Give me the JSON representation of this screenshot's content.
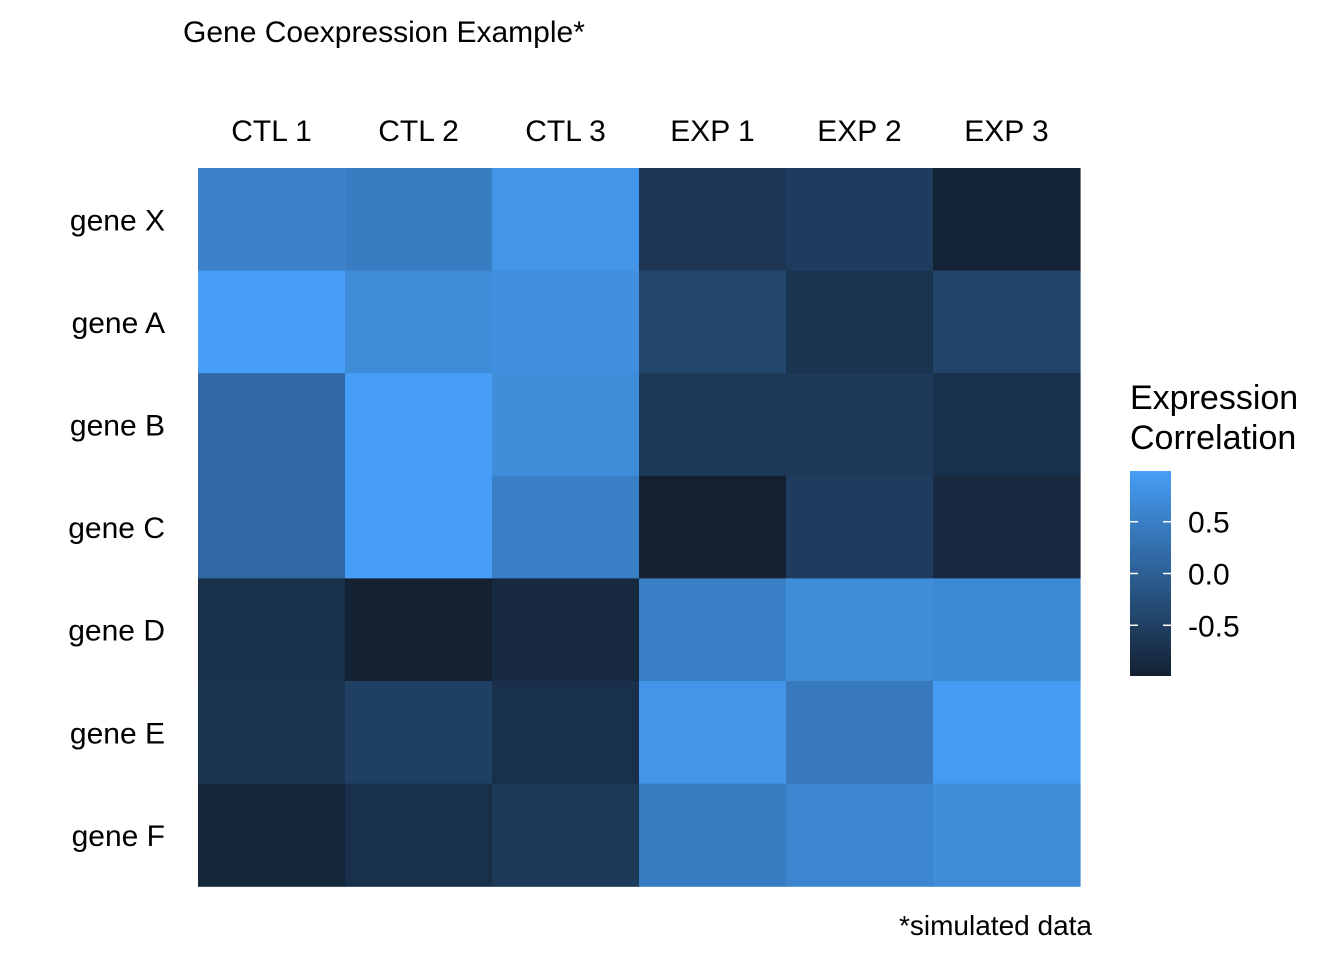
{
  "chart_data": {
    "type": "heatmap",
    "title": "Gene Coexpression Example*",
    "caption": "*simulated data",
    "columns": [
      "CTL 1",
      "CTL 2",
      "CTL 3",
      "EXP 1",
      "EXP 2",
      "EXP 3"
    ],
    "rows": [
      "gene X",
      "gene A",
      "gene B",
      "gene C",
      "gene D",
      "gene E",
      "gene F"
    ],
    "values": [
      [
        0.55,
        0.45,
        0.85,
        -0.65,
        -0.55,
        -0.95
      ],
      [
        0.99,
        0.7,
        0.75,
        -0.4,
        -0.7,
        -0.45
      ],
      [
        0.15,
        0.99,
        0.7,
        -0.6,
        -0.6,
        -0.75
      ],
      [
        0.15,
        0.99,
        0.5,
        -0.99,
        -0.55,
        -0.85
      ],
      [
        -0.75,
        -0.99,
        -0.85,
        0.5,
        0.7,
        0.65
      ],
      [
        -0.7,
        -0.5,
        -0.75,
        0.85,
        0.4,
        0.95
      ],
      [
        -0.9,
        -0.75,
        -0.6,
        0.45,
        0.6,
        0.7
      ]
    ],
    "value_range": [
      -0.99,
      0.99
    ],
    "color_low": "#132132",
    "color_high": "#469ef6",
    "legend": {
      "title_lines": [
        "Expression",
        "Correlation"
      ],
      "ticks": [
        0.5,
        0.0,
        -0.5
      ],
      "tick_labels": [
        "0.5",
        "0.0",
        "-0.5"
      ],
      "position": "right"
    },
    "grid": false
  }
}
